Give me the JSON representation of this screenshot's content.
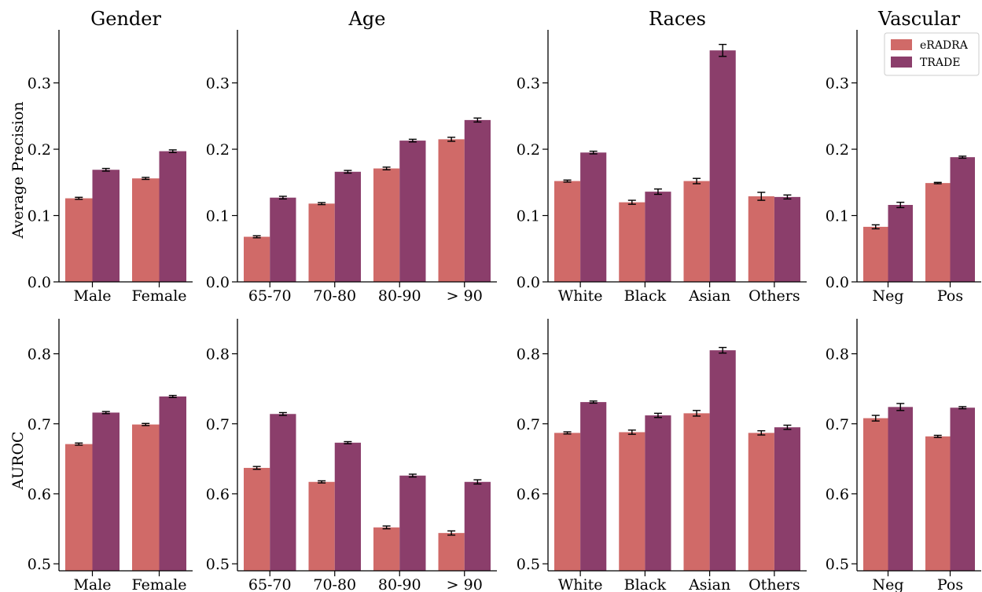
{
  "legend": {
    "entries": [
      "eRADRA",
      "TRADE"
    ],
    "position": "top-right"
  },
  "colors": {
    "eRADRA": "#d06a68",
    "TRADE": "#8b3e6b",
    "error_bar": "#000000",
    "axis": "#000000"
  },
  "chart_data": [
    {
      "type": "bar",
      "title": "Gender",
      "ylabel": "Average Precision",
      "metric": "Average Precision",
      "categories": [
        "Male",
        "Female"
      ],
      "series": [
        {
          "name": "eRADRA",
          "values": [
            0.126,
            0.156
          ],
          "errors": [
            0.0015,
            0.0015
          ]
        },
        {
          "name": "TRADE",
          "values": [
            0.169,
            0.197
          ],
          "errors": [
            0.002,
            0.002
          ]
        }
      ],
      "ylim": [
        0,
        0.38
      ],
      "yticks": [
        0.0,
        0.1,
        0.2,
        0.3
      ],
      "ytick_labels": [
        "0.0",
        "0.1",
        "0.2",
        "0.3"
      ]
    },
    {
      "type": "bar",
      "title": "Age",
      "ylabel": "",
      "metric": "Average Precision",
      "categories": [
        "65-70",
        "70-80",
        "80-90",
        "> 90"
      ],
      "series": [
        {
          "name": "eRADRA",
          "values": [
            0.068,
            0.118,
            0.171,
            0.215
          ],
          "errors": [
            0.0015,
            0.0015,
            0.002,
            0.003
          ]
        },
        {
          "name": "TRADE",
          "values": [
            0.127,
            0.166,
            0.213,
            0.244
          ],
          "errors": [
            0.002,
            0.002,
            0.002,
            0.003
          ]
        }
      ],
      "ylim": [
        0,
        0.38
      ],
      "yticks": [
        0.0,
        0.1,
        0.2,
        0.3
      ],
      "ytick_labels": [
        "0.0",
        "0.1",
        "0.2",
        "0.3"
      ]
    },
    {
      "type": "bar",
      "title": "Races",
      "ylabel": "",
      "metric": "Average Precision",
      "categories": [
        "White",
        "Black",
        "Asian",
        "Others"
      ],
      "series": [
        {
          "name": "eRADRA",
          "values": [
            0.152,
            0.12,
            0.152,
            0.129
          ],
          "errors": [
            0.0015,
            0.003,
            0.004,
            0.006
          ]
        },
        {
          "name": "TRADE",
          "values": [
            0.195,
            0.136,
            0.349,
            0.128
          ],
          "errors": [
            0.002,
            0.004,
            0.009,
            0.003
          ]
        }
      ],
      "ylim": [
        0,
        0.38
      ],
      "yticks": [
        0.0,
        0.1,
        0.2,
        0.3
      ],
      "ytick_labels": [
        "0.0",
        "0.1",
        "0.2",
        "0.3"
      ]
    },
    {
      "type": "bar",
      "title": "Vascular",
      "ylabel": "",
      "metric": "Average Precision",
      "categories": [
        "Neg",
        "Pos"
      ],
      "series": [
        {
          "name": "eRADRA",
          "values": [
            0.083,
            0.149
          ],
          "errors": [
            0.003,
            0.001
          ]
        },
        {
          "name": "TRADE",
          "values": [
            0.116,
            0.188
          ],
          "errors": [
            0.004,
            0.0015
          ]
        }
      ],
      "ylim": [
        0,
        0.38
      ],
      "yticks": [
        0.0,
        0.1,
        0.2,
        0.3
      ],
      "ytick_labels": [
        "0.0",
        "0.1",
        "0.2",
        "0.3"
      ]
    },
    {
      "type": "bar",
      "title": "",
      "ylabel": "AUROC",
      "metric": "AUROC",
      "categories": [
        "Male",
        "Female"
      ],
      "series": [
        {
          "name": "eRADRA",
          "values": [
            0.671,
            0.699
          ],
          "errors": [
            0.0015,
            0.0015
          ]
        },
        {
          "name": "TRADE",
          "values": [
            0.716,
            0.739
          ],
          "errors": [
            0.0015,
            0.0015
          ]
        }
      ],
      "ylim": [
        0.49,
        0.85
      ],
      "yticks": [
        0.5,
        0.6,
        0.7,
        0.8
      ],
      "ytick_labels": [
        "0.5",
        "0.6",
        "0.7",
        "0.8"
      ]
    },
    {
      "type": "bar",
      "title": "",
      "ylabel": "",
      "metric": "AUROC",
      "categories": [
        "65-70",
        "70-80",
        "80-90",
        "> 90"
      ],
      "series": [
        {
          "name": "eRADRA",
          "values": [
            0.637,
            0.617,
            0.552,
            0.544
          ],
          "errors": [
            0.002,
            0.0015,
            0.002,
            0.003
          ]
        },
        {
          "name": "TRADE",
          "values": [
            0.714,
            0.673,
            0.626,
            0.617
          ],
          "errors": [
            0.002,
            0.0015,
            0.002,
            0.003
          ]
        }
      ],
      "ylim": [
        0.49,
        0.85
      ],
      "yticks": [
        0.5,
        0.6,
        0.7,
        0.8
      ],
      "ytick_labels": [
        "0.5",
        "0.6",
        "0.7",
        "0.8"
      ]
    },
    {
      "type": "bar",
      "title": "",
      "ylabel": "",
      "metric": "AUROC",
      "categories": [
        "White",
        "Black",
        "Asian",
        "Others"
      ],
      "series": [
        {
          "name": "eRADRA",
          "values": [
            0.687,
            0.688,
            0.715,
            0.687
          ],
          "errors": [
            0.0015,
            0.003,
            0.004,
            0.003
          ]
        },
        {
          "name": "TRADE",
          "values": [
            0.731,
            0.712,
            0.805,
            0.695
          ],
          "errors": [
            0.0015,
            0.003,
            0.004,
            0.003
          ]
        }
      ],
      "ylim": [
        0.49,
        0.85
      ],
      "yticks": [
        0.5,
        0.6,
        0.7,
        0.8
      ],
      "ytick_labels": [
        "0.5",
        "0.6",
        "0.7",
        "0.8"
      ]
    },
    {
      "type": "bar",
      "title": "",
      "ylabel": "",
      "metric": "AUROC",
      "categories": [
        "Neg",
        "Pos"
      ],
      "series": [
        {
          "name": "eRADRA",
          "values": [
            0.708,
            0.682
          ],
          "errors": [
            0.004,
            0.0015
          ]
        },
        {
          "name": "TRADE",
          "values": [
            0.724,
            0.723
          ],
          "errors": [
            0.005,
            0.0015
          ]
        }
      ],
      "ylim": [
        0.49,
        0.85
      ],
      "yticks": [
        0.5,
        0.6,
        0.7,
        0.8
      ],
      "ytick_labels": [
        "0.5",
        "0.6",
        "0.7",
        "0.8"
      ]
    }
  ]
}
